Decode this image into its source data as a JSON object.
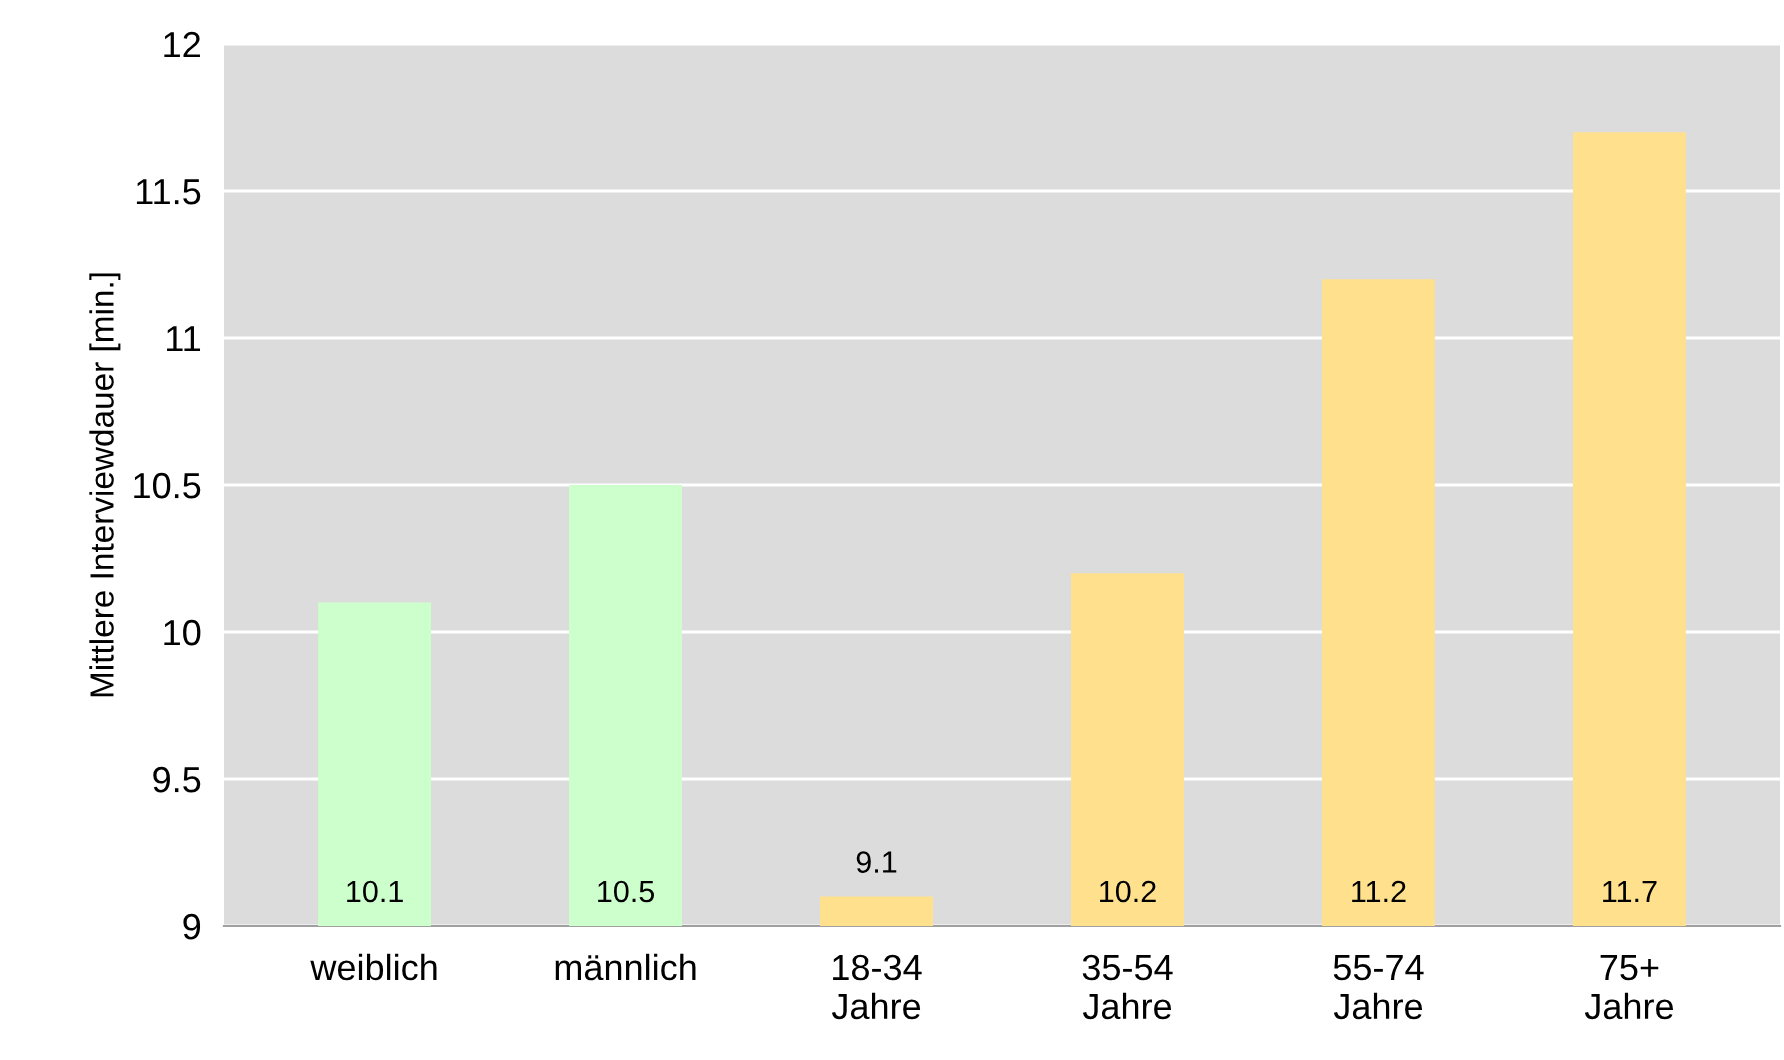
{
  "chart_data": {
    "type": "bar",
    "ylabel": "Mittlere Interviewdauer [min.]",
    "categories": [
      "weiblich",
      "männlich",
      "18-34\nJahre",
      "35-54\nJahre",
      "55-74\nJahre",
      "75+\nJahre"
    ],
    "values": [
      10.1,
      10.5,
      9.1,
      10.2,
      11.2,
      11.7
    ],
    "colors": [
      "#ccffcc",
      "#ccffcc",
      "#ffe08c",
      "#ffe08c",
      "#ffe08c",
      "#ffe08c"
    ],
    "ylim": [
      9,
      12
    ],
    "yticks": [
      9,
      9.5,
      10,
      10.5,
      11,
      11.5,
      12
    ],
    "grid": "y",
    "data_labels": true
  }
}
